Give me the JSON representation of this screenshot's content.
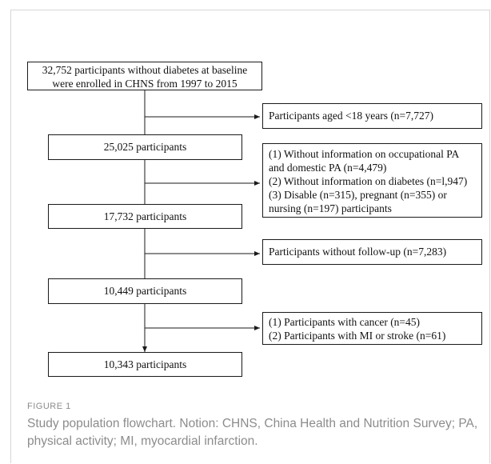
{
  "flowchart": {
    "main_boxes": [
      "32,752 participants without diabetes at baseline\nwere enrolled in CHNS from 1997 to 2015",
      "25,025 participants",
      "17,732 participants",
      "10,449 participants",
      "10,343 participants"
    ],
    "exclusion_boxes": [
      "Participants aged <18 years (n=7,727)",
      "(1) Without information on occupational PA\nand domestic PA (n=4,479)\n(2) Without information on diabetes (n=l,947)\n(3) Disable (n=315), pregnant (n=355) or\nnursing (n=197) participants",
      "Participants without follow-up (n=7,283)",
      "(1) Participants with cancer (n=45)\n(2) Participants with MI or stroke (n=61)"
    ]
  },
  "caption": {
    "label": "FIGURE 1",
    "text": "Study population flowchart. Notion: CHNS, China Health and Nutrition Survey; PA, physical activity; MI, myocardial infarction."
  }
}
